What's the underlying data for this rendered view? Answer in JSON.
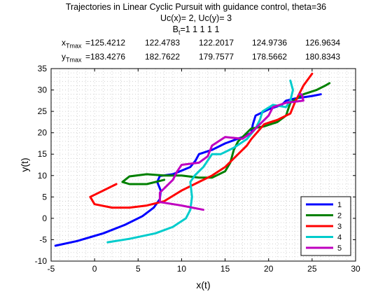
{
  "figure": {
    "title_line1": "Trajectories in Linear Cyclic Pursuit with guidance control, theta=36",
    "title_line2": "Uc(x)= 2, Uc(y)= 3",
    "bt_label": "B",
    "bt_sub": "t",
    "bt_values": "=1  1  1  1  1",
    "x_row_label": "x",
    "x_row_sub": "Tmax",
    "x_tmax": [
      "=125.4212",
      "122.4783",
      "122.2017",
      "124.9736",
      "126.9634"
    ],
    "y_row_label": "y",
    "y_row_sub": "Tmax",
    "y_tmax": [
      "=183.4276",
      "182.7622",
      "179.7577",
      "178.5662",
      "180.8343"
    ]
  },
  "chart_data": {
    "type": "line",
    "xlabel": "x(t)",
    "ylabel": "y(t)",
    "xlim": [
      -5,
      30
    ],
    "ylim": [
      -10,
      35
    ],
    "xticks": [
      -5,
      0,
      5,
      10,
      15,
      20,
      25,
      30
    ],
    "yticks": [
      -10,
      -5,
      0,
      5,
      10,
      15,
      20,
      25,
      30,
      35
    ],
    "grid": "dotted",
    "legend_position": "bottom-right",
    "series": [
      {
        "name": "1",
        "color": "#0000ff",
        "x": [
          -4.5,
          -2,
          1,
          3.5,
          5.5,
          6.8,
          7.5,
          7.6,
          7.2,
          7.5,
          9,
          11,
          11.6,
          12,
          13.5,
          15,
          17,
          18,
          18.2,
          18.5,
          20,
          21.5,
          22,
          23,
          25,
          26
        ],
        "y": [
          -6.4,
          -5.3,
          -3.5,
          -1.5,
          0.5,
          2.5,
          4.5,
          6.5,
          8.5,
          9.9,
          10.3,
          12,
          13.5,
          15,
          16,
          17.5,
          19,
          20,
          22,
          24,
          25.5,
          26.5,
          27.5,
          28,
          28.6,
          29
        ]
      },
      {
        "name": "2",
        "color": "#008000",
        "x": [
          8,
          6,
          4,
          3.2,
          4,
          6,
          8,
          10,
          12,
          13.5,
          15,
          15.6,
          16,
          16.5,
          18,
          19.5,
          21,
          22,
          22.5,
          24,
          25.5,
          26.5,
          27
        ],
        "y": [
          9,
          8,
          8,
          8.5,
          9.8,
          10.3,
          10,
          10,
          9.5,
          9.5,
          11,
          13,
          16,
          18,
          21,
          21.5,
          22.5,
          24,
          27,
          29,
          30,
          31,
          31.6
        ]
      },
      {
        "name": "3",
        "color": "#ff0000",
        "x": [
          2.5,
          1,
          -0.5,
          0,
          2,
          4,
          6,
          8,
          10,
          12,
          13.5,
          15,
          16.5,
          17.5,
          18,
          19.5,
          21,
          22.5,
          23,
          24,
          25
        ],
        "y": [
          8,
          6.5,
          5,
          3.3,
          2.5,
          2.5,
          3,
          4,
          6.5,
          8.5,
          10,
          12,
          15,
          17,
          18.5,
          22,
          23,
          24.5,
          27,
          31,
          33.8
        ]
      },
      {
        "name": "4",
        "color": "#00cccc",
        "x": [
          1.5,
          4,
          7,
          9,
          10.5,
          11,
          11.2,
          11,
          11.5,
          12.5,
          13.5,
          14.5,
          16,
          17.5,
          18.5,
          19,
          19.3,
          20.5,
          22,
          22.5,
          22.8,
          22.5
        ],
        "y": [
          -5.6,
          -4.8,
          -3.5,
          -2,
          0,
          2,
          5,
          8.5,
          10,
          12,
          15,
          15,
          16.5,
          18.5,
          21,
          23,
          25,
          26.5,
          26,
          27.5,
          30,
          32.2
        ]
      },
      {
        "name": "5",
        "color": "#bf00bf",
        "x": [
          12.5,
          10,
          7.5,
          7.5,
          9,
          9.5,
          10,
          12,
          13,
          13.5,
          15,
          17,
          18,
          19,
          20,
          20.5,
          22,
          24,
          23.8,
          23.5
        ],
        "y": [
          2,
          3,
          3.8,
          6,
          9,
          11,
          12.5,
          13,
          14.5,
          17,
          19,
          18.6,
          20,
          22,
          24,
          26,
          27,
          27.5,
          29,
          29
        ]
      }
    ]
  }
}
